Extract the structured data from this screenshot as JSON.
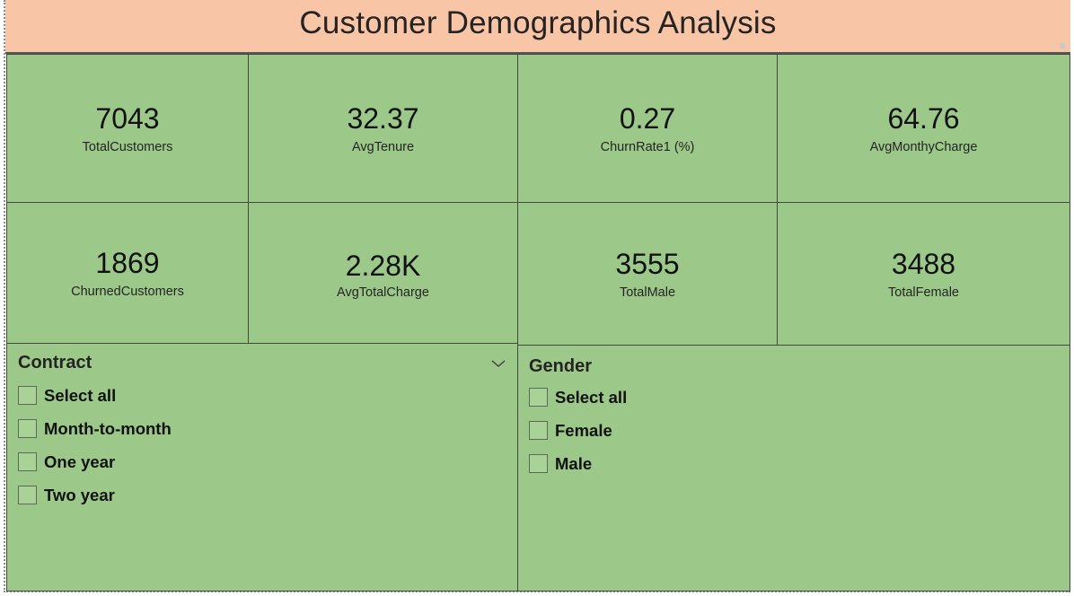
{
  "report": {
    "title": "Customer Demographics Analysis"
  },
  "kpis": [
    {
      "value": "7043",
      "label": "TotalCustomers"
    },
    {
      "value": "32.37",
      "label": "AvgTenure"
    },
    {
      "value": "0.27",
      "label": "ChurnRate1 (%)"
    },
    {
      "value": "64.76",
      "label": "AvgMonthyCharge"
    },
    {
      "value": "1869",
      "label": "ChurnedCustomers"
    },
    {
      "value": "2.28K",
      "label": "AvgTotalCharge"
    },
    {
      "value": "3555",
      "label": "TotalMale"
    },
    {
      "value": "3488",
      "label": "TotalFemale"
    }
  ],
  "slicers": {
    "contract": {
      "title": "Contract",
      "options": [
        "Select all",
        "Month-to-month",
        "One year",
        "Two year"
      ]
    },
    "gender": {
      "title": "Gender",
      "options": [
        "Select all",
        "Female",
        "Male"
      ]
    }
  },
  "colors": {
    "title_bg": "#f8c5a6",
    "card_bg": "#9cc98a",
    "border": "#3f4b3b"
  }
}
